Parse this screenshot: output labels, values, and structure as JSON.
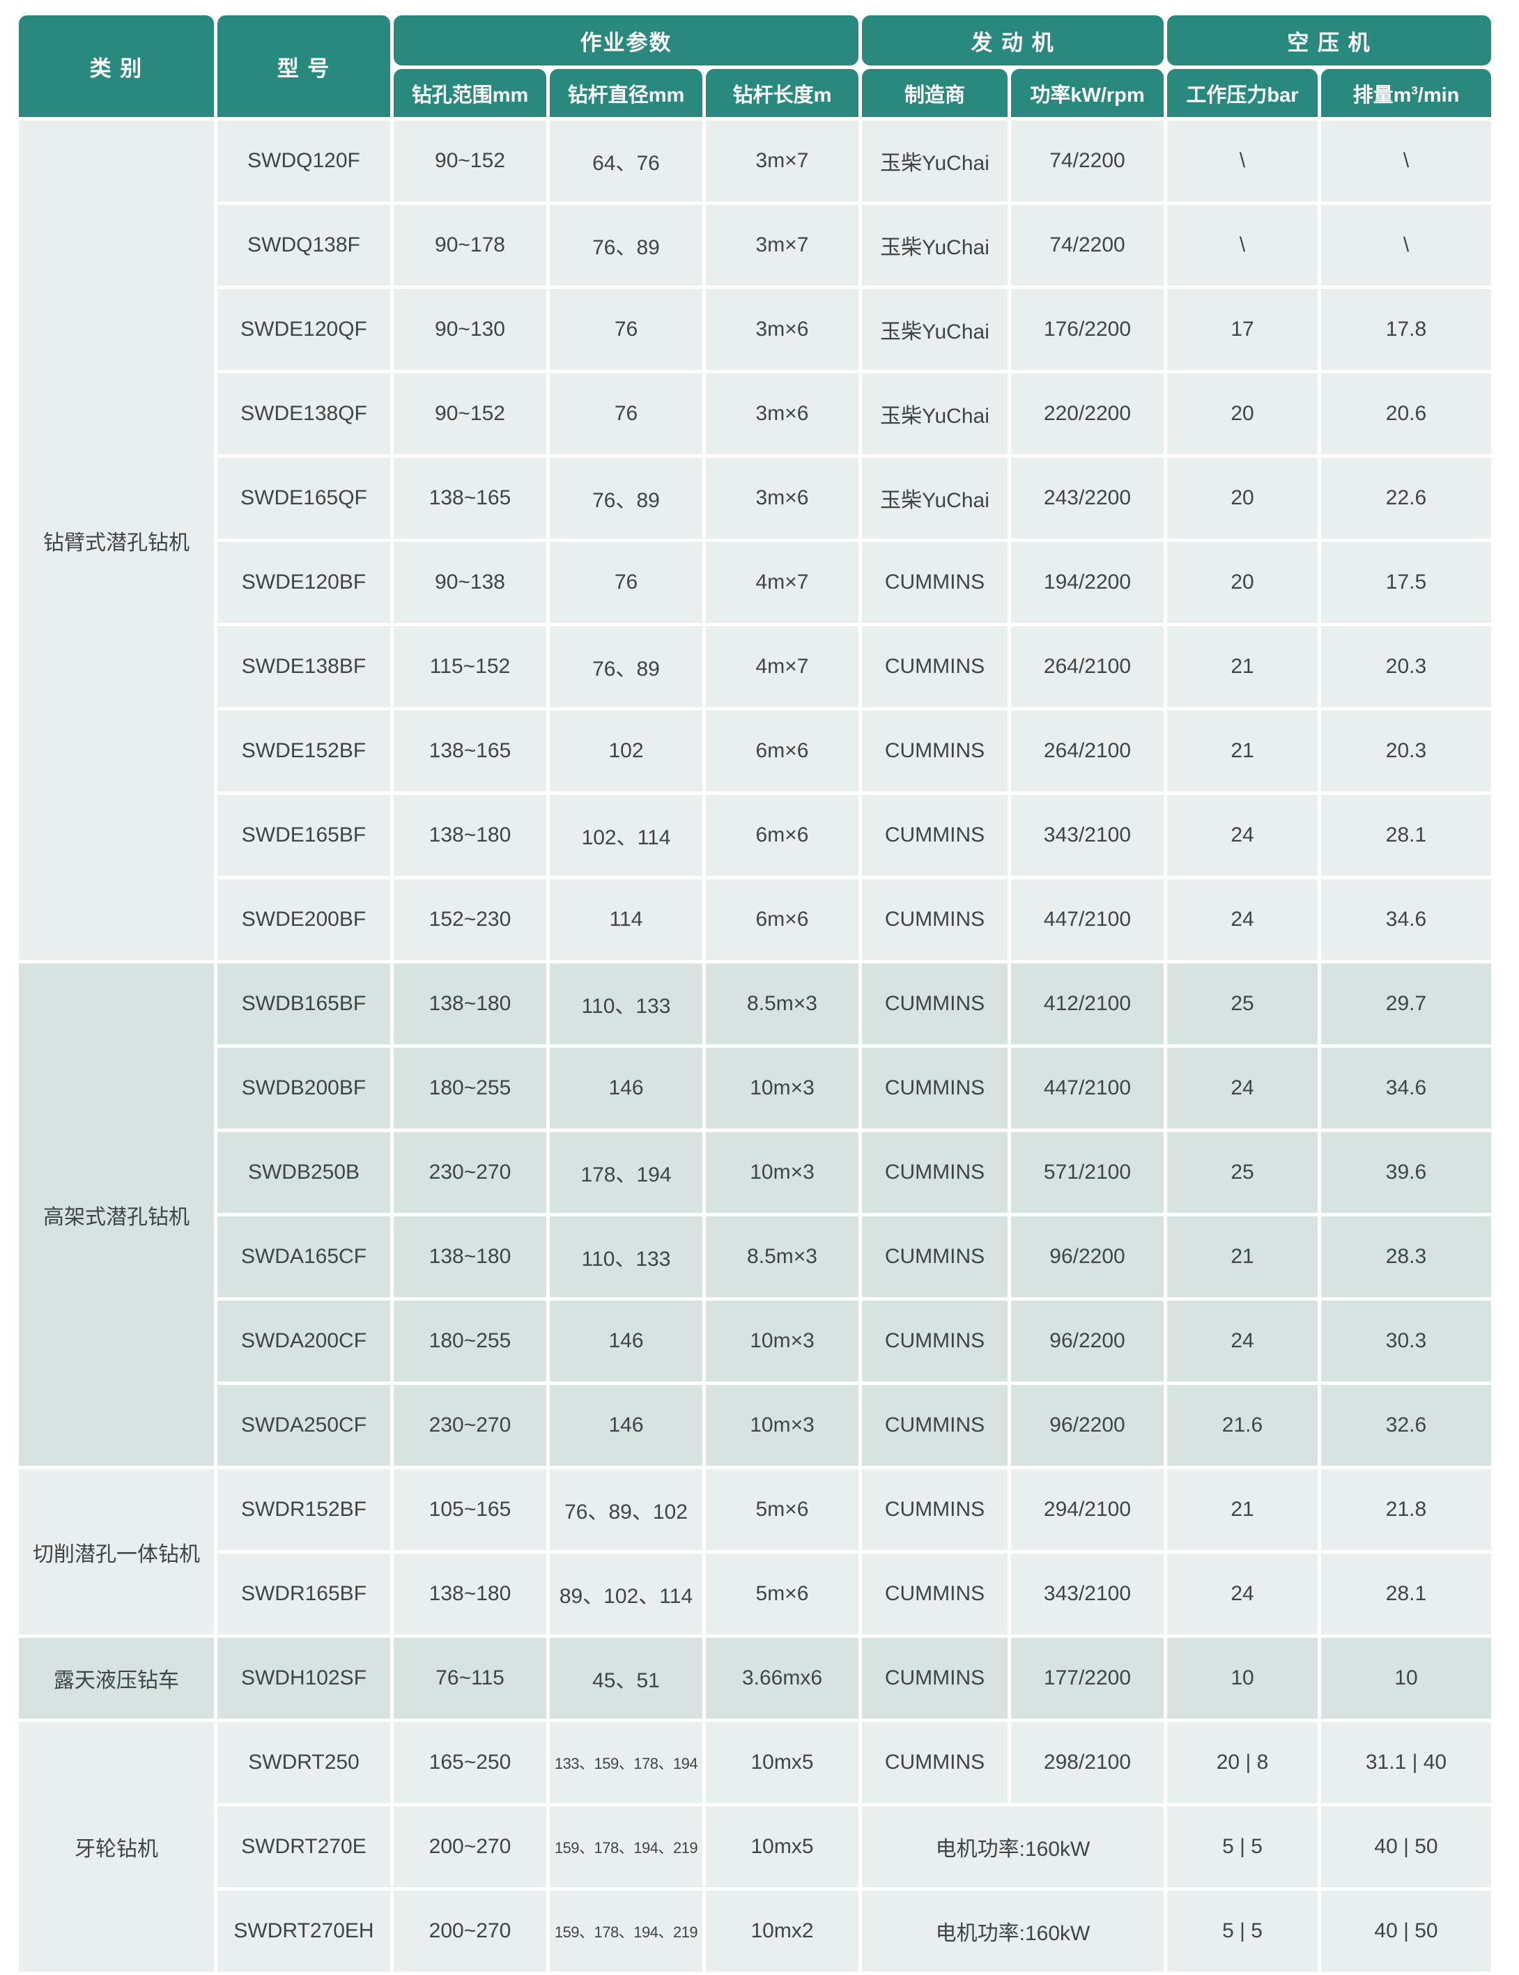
{
  "colors": {
    "header_bg": "#29897e",
    "header_text": "#ffffff",
    "row_light": "#e9efee",
    "row_dark": "#d6e3e0",
    "body_text": "#3f4547",
    "page_bg": "#ffffff"
  },
  "table": {
    "header": {
      "category": "类 别",
      "model": "型 号",
      "group_params": "作业参数",
      "group_engine": "发 动 机",
      "group_compressor": "空 压 机",
      "sub_range": "钻孔范围mm",
      "sub_diameter": "钻杆直径mm",
      "sub_length": "钻杆长度m",
      "sub_maker": "制造商",
      "sub_power": "功率kW/rpm",
      "sub_pressure": "工作压力bar",
      "sub_disp_prefix": "排量m",
      "sub_disp_sup": "3",
      "sub_disp_suffix": "/min"
    },
    "groups": [
      {
        "category": "钻臂式潜孔钻机",
        "shade": "light",
        "rows": [
          {
            "model": "SWDQ120F",
            "range": "90~152",
            "diameter": "64、76",
            "length": "3m×7",
            "maker": "玉柴YuChai",
            "power": "74/2200",
            "pressure": "\\",
            "displacement": "\\"
          },
          {
            "model": "SWDQ138F",
            "range": "90~178",
            "diameter": "76、89",
            "length": "3m×7",
            "maker": "玉柴YuChai",
            "power": "74/2200",
            "pressure": "\\",
            "displacement": "\\"
          },
          {
            "model": "SWDE120QF",
            "range": "90~130",
            "diameter": "76",
            "length": "3m×6",
            "maker": "玉柴YuChai",
            "power": "176/2200",
            "pressure": "17",
            "displacement": "17.8"
          },
          {
            "model": "SWDE138QF",
            "range": "90~152",
            "diameter": "76",
            "length": "3m×6",
            "maker": "玉柴YuChai",
            "power": "220/2200",
            "pressure": "20",
            "displacement": "20.6"
          },
          {
            "model": "SWDE165QF",
            "range": "138~165",
            "diameter": "76、89",
            "length": "3m×6",
            "maker": "玉柴YuChai",
            "power": "243/2200",
            "pressure": "20",
            "displacement": "22.6"
          },
          {
            "model": "SWDE120BF",
            "range": "90~138",
            "diameter": "76",
            "length": "4m×7",
            "maker": "CUMMINS",
            "power": "194/2200",
            "pressure": "20",
            "displacement": "17.5"
          },
          {
            "model": "SWDE138BF",
            "range": "115~152",
            "diameter": "76、89",
            "length": "4m×7",
            "maker": "CUMMINS",
            "power": "264/2100",
            "pressure": "21",
            "displacement": "20.3"
          },
          {
            "model": "SWDE152BF",
            "range": "138~165",
            "diameter": "102",
            "length": "6m×6",
            "maker": "CUMMINS",
            "power": "264/2100",
            "pressure": "21",
            "displacement": "20.3"
          },
          {
            "model": "SWDE165BF",
            "range": "138~180",
            "diameter": "102、114",
            "length": "6m×6",
            "maker": "CUMMINS",
            "power": "343/2100",
            "pressure": "24",
            "displacement": "28.1"
          },
          {
            "model": "SWDE200BF",
            "range": "152~230",
            "diameter": "114",
            "length": "6m×6",
            "maker": "CUMMINS",
            "power": "447/2100",
            "pressure": "24",
            "displacement": "34.6"
          }
        ]
      },
      {
        "category": "高架式潜孔钻机",
        "shade": "dark",
        "rows": [
          {
            "model": "SWDB165BF",
            "range": "138~180",
            "diameter": "110、133",
            "length": "8.5m×3",
            "maker": "CUMMINS",
            "power": "412/2100",
            "pressure": "25",
            "displacement": "29.7"
          },
          {
            "model": "SWDB200BF",
            "range": "180~255",
            "diameter": "146",
            "length": "10m×3",
            "maker": "CUMMINS",
            "power": "447/2100",
            "pressure": "24",
            "displacement": "34.6"
          },
          {
            "model": "SWDB250B",
            "range": "230~270",
            "diameter": "178、194",
            "length": "10m×3",
            "maker": "CUMMINS",
            "power": "571/2100",
            "pressure": "25",
            "displacement": "39.6"
          },
          {
            "model": "SWDA165CF",
            "range": "138~180",
            "diameter": "110、133",
            "length": "8.5m×3",
            "maker": "CUMMINS",
            "power": "96/2200",
            "pressure": "21",
            "displacement": "28.3"
          },
          {
            "model": "SWDA200CF",
            "range": "180~255",
            "diameter": "146",
            "length": "10m×3",
            "maker": "CUMMINS",
            "power": "96/2200",
            "pressure": "24",
            "displacement": "30.3"
          },
          {
            "model": "SWDA250CF",
            "range": "230~270",
            "diameter": "146",
            "length": "10m×3",
            "maker": "CUMMINS",
            "power": "96/2200",
            "pressure": "21.6",
            "displacement": "32.6"
          }
        ]
      },
      {
        "category": "切削潜孔一体钻机",
        "shade": "light",
        "rows": [
          {
            "model": "SWDR152BF",
            "range": "105~165",
            "diameter": "76、89、102",
            "length": "5m×6",
            "maker": "CUMMINS",
            "power": "294/2100",
            "pressure": "21",
            "displacement": "21.8"
          },
          {
            "model": "SWDR165BF",
            "range": "138~180",
            "diameter": "89、102、114",
            "length": "5m×6",
            "maker": "CUMMINS",
            "power": "343/2100",
            "pressure": "24",
            "displacement": "28.1"
          }
        ]
      },
      {
        "category": "露天液压钻车",
        "shade": "dark",
        "rows": [
          {
            "model": "SWDH102SF",
            "range": "76~115",
            "diameter": "45、51",
            "length": "3.66mx6",
            "maker": "CUMMINS",
            "power": "177/2200",
            "pressure": "10",
            "displacement": "10"
          }
        ]
      },
      {
        "category": "牙轮钻机",
        "shade": "light",
        "rows": [
          {
            "model": "SWDRT250",
            "range": "165~250",
            "diameter": "133、159、178、194",
            "diameter_small": true,
            "length": "10mx5",
            "maker": "CUMMINS",
            "power": "298/2100",
            "pressure": "20 | 8",
            "displacement": "31.1 | 40"
          },
          {
            "model": "SWDRT270E",
            "range": "200~270",
            "diameter": "159、178、194、219",
            "diameter_small": true,
            "length": "10mx5",
            "engine_merged": "电机功率:160kW",
            "pressure": "5 | 5",
            "displacement": "40 | 50"
          },
          {
            "model": "SWDRT270EH",
            "range": "200~270",
            "diameter": "159、178、194、219",
            "diameter_small": true,
            "length": "10mx2",
            "engine_merged": "电机功率:160kW",
            "pressure": "5 | 5",
            "displacement": "40 | 50"
          }
        ]
      }
    ]
  }
}
